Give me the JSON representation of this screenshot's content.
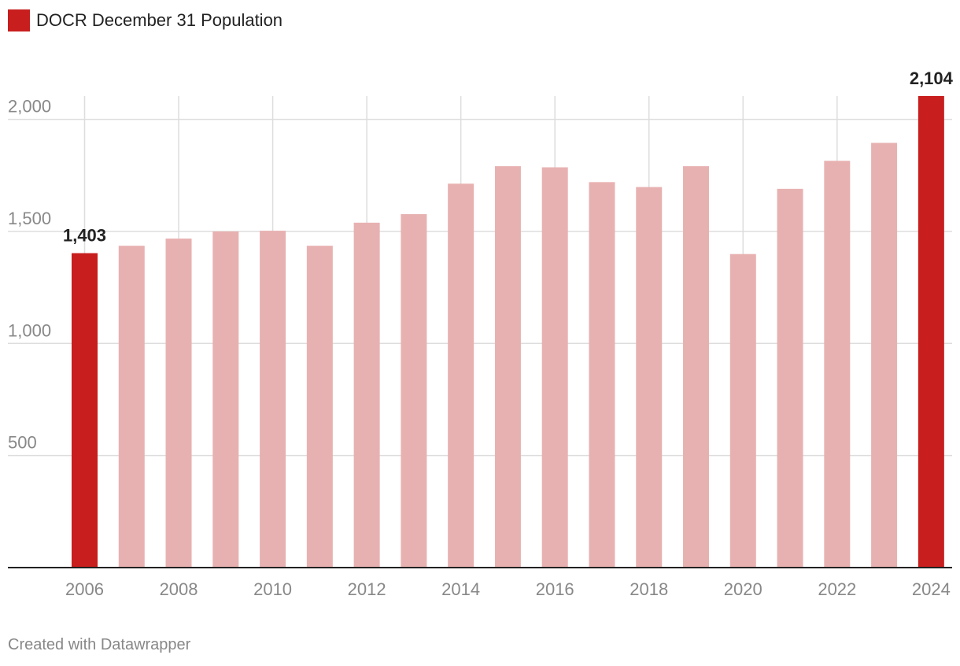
{
  "legend": {
    "label": "DOCR December 31 Population",
    "color": "#c81e1e"
  },
  "footer": {
    "credit": "Created with Datawrapper"
  },
  "chart_data": {
    "type": "bar",
    "title": "",
    "xlabel": "",
    "ylabel": "",
    "ylim": [
      0,
      2104
    ],
    "yticks": [
      500,
      1000,
      1500,
      2000
    ],
    "ytick_labels": [
      "500",
      "1,000",
      "1,500",
      "2,000"
    ],
    "xtick_labels": [
      "2006",
      "2008",
      "2010",
      "2012",
      "2014",
      "2016",
      "2018",
      "2020",
      "2022",
      "2024"
    ],
    "grid": true,
    "legend_position": "top-left",
    "categories": [
      "2006",
      "2007",
      "2008",
      "2009",
      "2010",
      "2011",
      "2012",
      "2013",
      "2014",
      "2015",
      "2016",
      "2017",
      "2018",
      "2019",
      "2020",
      "2021",
      "2022",
      "2023",
      "2024"
    ],
    "series": [
      {
        "name": "DOCR December 31 Population",
        "values": [
          1403,
          1436,
          1468,
          1500,
          1503,
          1436,
          1539,
          1577,
          1713,
          1791,
          1786,
          1720,
          1698,
          1791,
          1399,
          1690,
          1815,
          1895,
          2104
        ]
      }
    ],
    "highlight": [
      "2006",
      "2024"
    ],
    "data_labels": [
      {
        "category": "2006",
        "text": "1,403"
      },
      {
        "category": "2024",
        "text": "2,104"
      }
    ],
    "colors": {
      "highlight": "#c81e1e",
      "normal": "#e8b1b1",
      "grid": "#dddddd",
      "axis": "#222222",
      "tick_text": "#888888"
    }
  }
}
